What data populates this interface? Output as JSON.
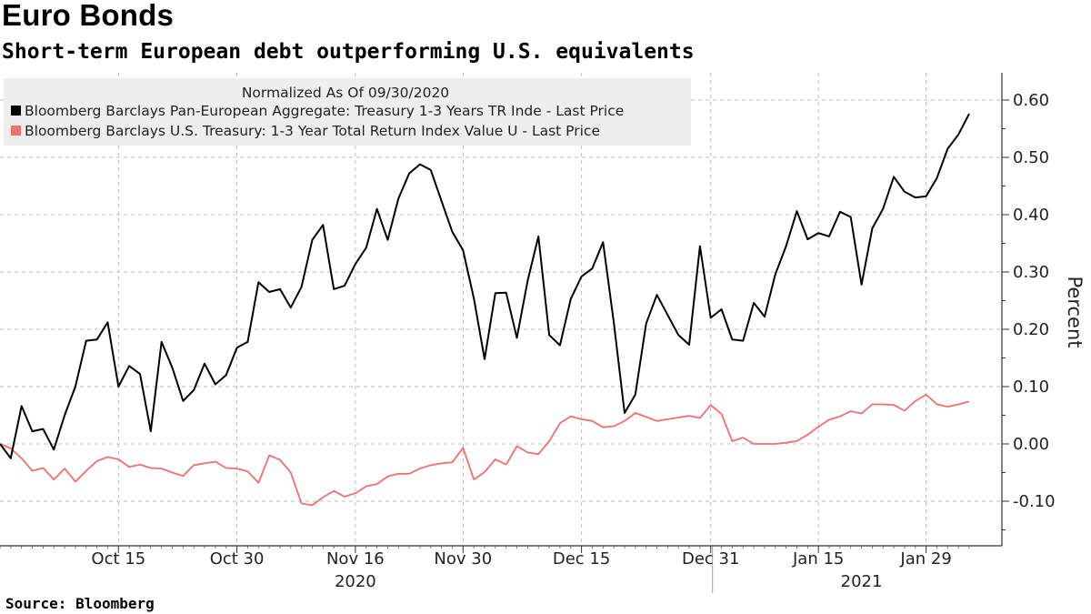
{
  "header": {
    "title": "Euro Bonds",
    "subtitle": "Short-term European debt outperforming U.S. equivalents"
  },
  "footer": {
    "source": "Source: Bloomberg"
  },
  "colors": {
    "european": "#000000",
    "us": "#f07070",
    "grid": "#bfbfbf",
    "legend_bg": "#eeeeee"
  },
  "chart_data": {
    "type": "line",
    "legend": {
      "title": "Normalized As Of 09/30/2020",
      "placement": "top-left"
    },
    "ylabel": "Percent",
    "ylim": [
      -0.175,
      0.65
    ],
    "y_ticks": [
      -0.1,
      0.0,
      0.1,
      0.2,
      0.3,
      0.4,
      0.5,
      0.6
    ],
    "y_tick_labels": [
      "-0.10",
      "0.00",
      "0.10",
      "0.20",
      "0.30",
      "0.40",
      "0.50",
      "0.60"
    ],
    "x_ticks": [
      {
        "label": "Oct 15",
        "index": 11
      },
      {
        "label": "Oct 30",
        "index": 22
      },
      {
        "label": "Nov 16",
        "index": 33
      },
      {
        "label": "Nov 30",
        "index": 43
      },
      {
        "label": "Dec 15",
        "index": 54
      },
      {
        "label": "Dec 31",
        "index": 66
      },
      {
        "label": "Jan 15",
        "index": 76
      },
      {
        "label": "Jan 29",
        "index": 86
      }
    ],
    "year_labels": [
      {
        "label": "2020",
        "index": 33
      },
      {
        "label": "2021",
        "index": 80
      }
    ],
    "grid": true,
    "series": [
      {
        "name": "Bloomberg Barclays Pan-European Aggregate: Treasury 1-3 Years TR Inde - Last Price",
        "values": [
          0.0,
          -0.025,
          0.066,
          0.022,
          0.026,
          -0.01,
          0.05,
          0.1,
          0.18,
          0.182,
          0.212,
          0.1,
          0.136,
          0.122,
          0.022,
          0.178,
          0.133,
          0.075,
          0.094,
          0.14,
          0.104,
          0.12,
          0.168,
          0.178,
          0.282,
          0.265,
          0.27,
          0.238,
          0.274,
          0.356,
          0.382,
          0.27,
          0.276,
          0.314,
          0.342,
          0.41,
          0.356,
          0.428,
          0.472,
          0.488,
          0.478,
          0.424,
          0.37,
          0.338,
          0.254,
          0.148,
          0.263,
          0.264,
          0.185,
          0.285,
          0.362,
          0.19,
          0.172,
          0.253,
          0.292,
          0.306,
          0.352,
          0.212,
          0.054,
          0.086,
          0.21,
          0.26,
          0.225,
          0.19,
          0.173,
          0.345,
          0.22,
          0.235,
          0.182,
          0.18,
          0.246,
          0.222,
          0.296,
          0.345,
          0.406,
          0.357,
          0.368,
          0.362,
          0.405,
          0.396,
          0.278,
          0.376,
          0.41,
          0.466,
          0.44,
          0.43,
          0.432,
          0.464,
          0.515,
          0.54,
          0.576
        ]
      },
      {
        "name": "Bloomberg Barclays U.S. Treasury: 1-3 Year Total Return Index Value U - Last Price",
        "values": [
          0.0,
          -0.008,
          -0.025,
          -0.047,
          -0.042,
          -0.062,
          -0.043,
          -0.066,
          -0.047,
          -0.03,
          -0.023,
          -0.027,
          -0.04,
          -0.036,
          -0.042,
          -0.043,
          -0.05,
          -0.056,
          -0.037,
          -0.034,
          -0.031,
          -0.042,
          -0.043,
          -0.048,
          -0.068,
          -0.02,
          -0.028,
          -0.05,
          -0.104,
          -0.107,
          -0.093,
          -0.082,
          -0.092,
          -0.086,
          -0.074,
          -0.07,
          -0.057,
          -0.052,
          -0.052,
          -0.043,
          -0.037,
          -0.034,
          -0.032,
          -0.007,
          -0.062,
          -0.049,
          -0.027,
          -0.036,
          -0.004,
          -0.015,
          -0.018,
          0.005,
          0.036,
          0.048,
          0.043,
          0.04,
          0.029,
          0.031,
          0.04,
          0.054,
          0.047,
          0.04,
          0.043,
          0.046,
          0.049,
          0.045,
          0.068,
          0.052,
          0.005,
          0.011,
          0.0,
          0.0,
          0.0,
          0.002,
          0.005,
          0.016,
          0.03,
          0.042,
          0.048,
          0.057,
          0.053,
          0.069,
          0.069,
          0.068,
          0.058,
          0.075,
          0.086,
          0.069,
          0.065,
          0.069,
          0.074
        ]
      }
    ]
  }
}
